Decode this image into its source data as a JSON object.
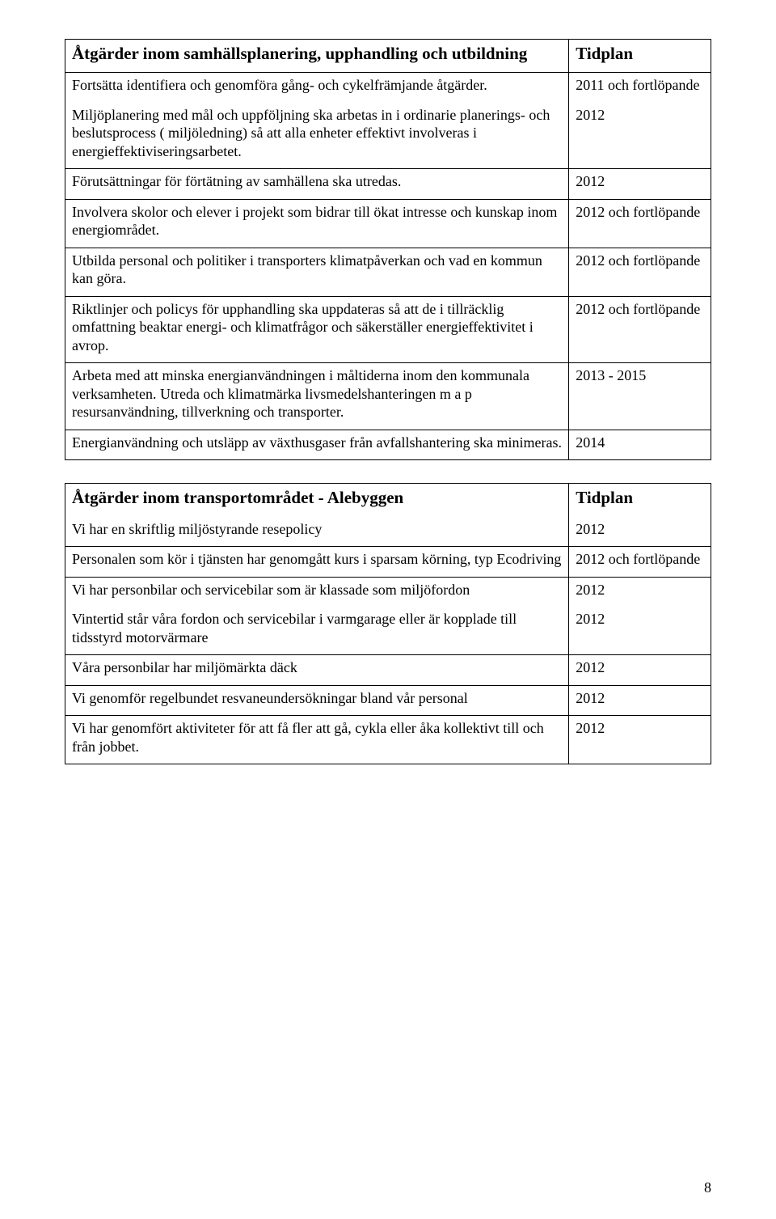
{
  "table1": {
    "header_left": "Åtgärder inom samhällsplanering, upphandling och utbildning",
    "header_right": "Tidplan",
    "rows": [
      {
        "left": "Fortsätta identifiera och genomföra gång- och cykelfrämjande åtgärder.",
        "right": "2011 och fortlöpande",
        "merge_below": true
      },
      {
        "left": "Miljöplanering med mål och uppföljning ska arbetas in i ordinarie planerings- och beslutsprocess ( miljöledning) så att alla enheter effektivt involveras i energieffektiviseringsarbetet.",
        "right": "2012"
      },
      {
        "left": "Förutsättningar för förtätning av samhällena ska utredas.",
        "right": "2012"
      },
      {
        "left": "Involvera skolor och elever i projekt som bidrar till ökat intresse och kunskap inom energiområdet.",
        "right": "2012 och fortlöpande"
      },
      {
        "left": "Utbilda personal och politiker i transporters klimatpåverkan och vad en kommun kan göra.",
        "right": "2012 och fortlöpande"
      },
      {
        "left": "Riktlinjer och policys för upphandling ska uppdateras så att de i tillräcklig omfattning beaktar energi- och klimatfrågor och säkerställer energieffektivitet i avrop.",
        "right": "2012 och fortlöpande"
      },
      {
        "left": "Arbeta med att minska energianvändningen i måltiderna inom den kommunala verksamheten. Utreda och klimatmärka livsmedelshanteringen m a p resursanvändning, tillverkning och transporter.",
        "right": "2013 - 2015"
      },
      {
        "left": "Energianvändning och utsläpp av växthusgaser från avfallshantering ska minimeras.",
        "right": "2014"
      }
    ]
  },
  "table2": {
    "header_left": "Åtgärder inom transportområdet - Alebyggen",
    "header_right": "Tidplan",
    "rows": [
      {
        "left": "Vi har en skriftlig miljöstyrande resepolicy",
        "right": "2012"
      },
      {
        "left": "Personalen som kör i tjänsten har genomgått kurs i sparsam körning, typ Ecodriving",
        "right": "2012 och fortlöpande"
      },
      {
        "left": "Vi har personbilar och servicebilar som är klassade som miljöfordon",
        "right": "2012",
        "merge_below": true
      },
      {
        "left": "Vintertid står våra fordon och servicebilar i varmgarage eller är kopplade till tidsstyrd motorvärmare",
        "right": "2012"
      },
      {
        "left": "Våra personbilar har miljömärkta däck",
        "right": "2012"
      },
      {
        "left": "Vi genomför regelbundet resvaneundersökningar bland vår personal",
        "right": "2012"
      },
      {
        "left": "Vi har genomfört aktiviteter för att få fler att gå, cykla eller åka kollektivt till och från jobbet.",
        "right": "2012"
      }
    ]
  },
  "page_number": "8"
}
